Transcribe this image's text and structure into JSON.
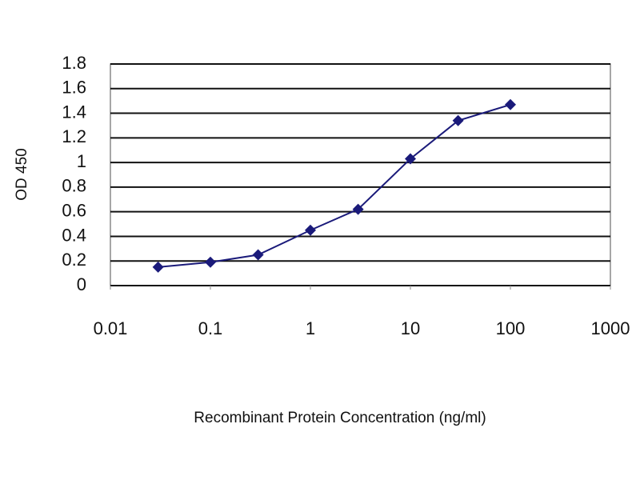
{
  "chart_data": {
    "type": "line",
    "xlabel": "Recombinant Protein Concentration (ng/ml)",
    "ylabel": "OD 450",
    "x": [
      0.03,
      0.1,
      0.3,
      1,
      3,
      10,
      30,
      100
    ],
    "values": [
      0.15,
      0.19,
      0.25,
      0.45,
      0.62,
      1.03,
      1.34,
      1.47
    ],
    "color": "#1a1a7a",
    "xscale": "log",
    "xlim": [
      0.01,
      1000
    ],
    "xticks": [
      0.01,
      0.1,
      1,
      10,
      100,
      1000
    ],
    "ylim": [
      0,
      1.8
    ],
    "yticks": [
      0,
      0.2,
      0.4,
      0.6,
      0.8,
      1,
      1.2,
      1.4,
      1.6,
      1.8
    ],
    "grid": true
  }
}
